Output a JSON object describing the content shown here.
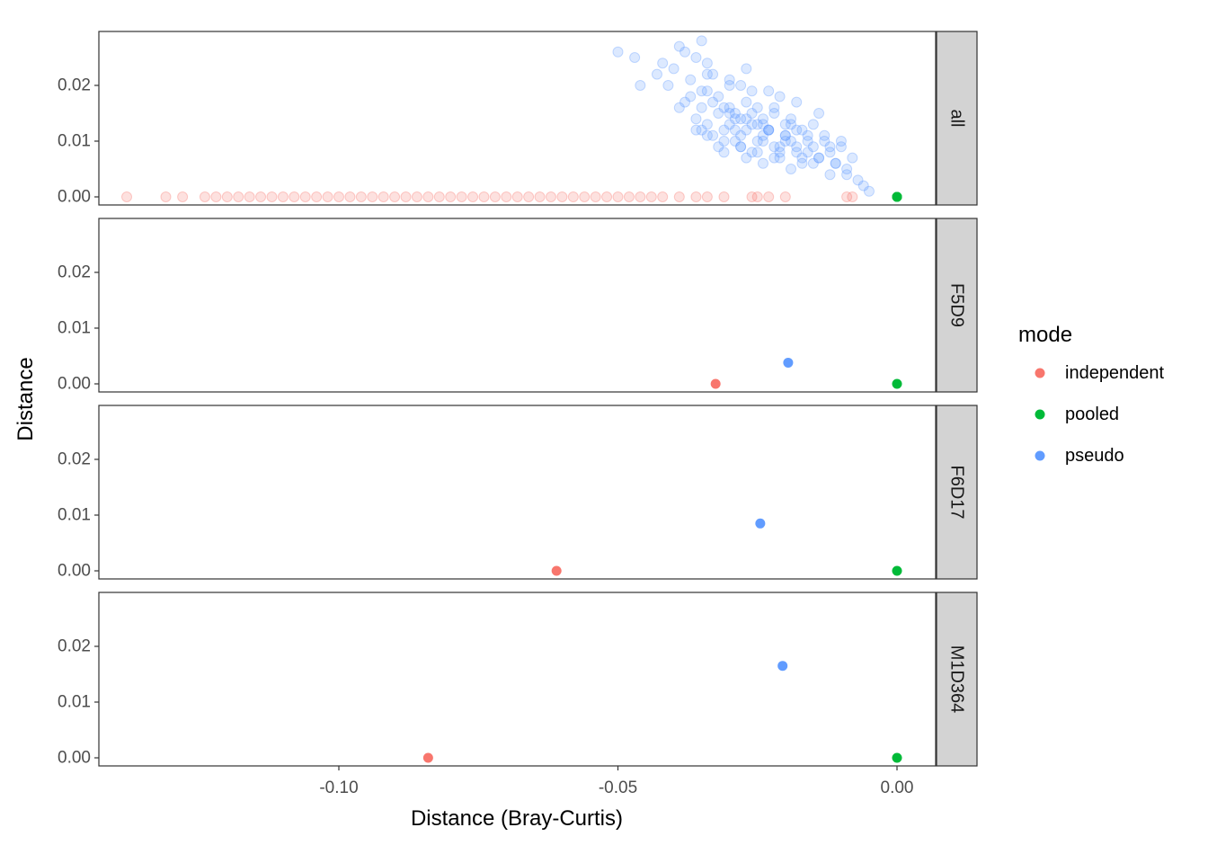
{
  "chart_data": {
    "type": "scatter",
    "title": "",
    "xlabel": "Distance (Bray-Curtis)",
    "ylabel": "Distance",
    "xlim": [
      -0.145,
      0.0145
    ],
    "ylim": [
      -0.0013,
      0.0295
    ],
    "x_ticks": [
      -0.1,
      -0.05,
      0.0
    ],
    "x_tick_labels": [
      "-0.10",
      "-0.05",
      "0.00"
    ],
    "y_ticks": [
      0.0,
      0.01,
      0.02
    ],
    "y_tick_labels": [
      "0.00",
      "0.01",
      "0.02"
    ],
    "facet_labels": [
      "all",
      "F5D9",
      "F6D17",
      "M1D364"
    ],
    "grid": false,
    "legend": {
      "title": "mode",
      "placement": "right",
      "entries": [
        {
          "label": "independent",
          "color": "#F8766D"
        },
        {
          "label": "pooled",
          "color": "#00BA38"
        },
        {
          "label": "pseudo",
          "color": "#619CFF"
        }
      ]
    },
    "series": [
      {
        "name": "independent",
        "color": "#F8766D",
        "facets": {
          "all": {
            "x": [
              -0.138,
              -0.131,
              -0.128,
              -0.124,
              -0.122,
              -0.12,
              -0.118,
              -0.116,
              -0.114,
              -0.112,
              -0.11,
              -0.108,
              -0.106,
              -0.104,
              -0.102,
              -0.1,
              -0.098,
              -0.096,
              -0.094,
              -0.092,
              -0.09,
              -0.088,
              -0.086,
              -0.084,
              -0.082,
              -0.08,
              -0.078,
              -0.076,
              -0.074,
              -0.072,
              -0.07,
              -0.068,
              -0.066,
              -0.064,
              -0.062,
              -0.06,
              -0.058,
              -0.056,
              -0.054,
              -0.052,
              -0.05,
              -0.048,
              -0.046,
              -0.044,
              -0.042,
              -0.039,
              -0.036,
              -0.034,
              -0.031,
              -0.026,
              -0.025,
              -0.023,
              -0.02,
              -0.009,
              -0.008
            ],
            "y": [
              0,
              0,
              0,
              0,
              0,
              0,
              0,
              0,
              0,
              0,
              0,
              0,
              0,
              0,
              0,
              0,
              0,
              0,
              0,
              0,
              0,
              0,
              0,
              0,
              0,
              0,
              0,
              0,
              0,
              0,
              0,
              0,
              0,
              0,
              0,
              0,
              0,
              0,
              0,
              0,
              0,
              0,
              0,
              0,
              0,
              0,
              0,
              0,
              0,
              0,
              0,
              0,
              0,
              0,
              0
            ]
          },
          "F5D9": {
            "x": [
              -0.0325
            ],
            "y": [
              0.0
            ]
          },
          "F6D17": {
            "x": [
              -0.061
            ],
            "y": [
              0.0
            ]
          },
          "M1D364": {
            "x": [
              -0.084
            ],
            "y": [
              0.0
            ]
          }
        }
      },
      {
        "name": "pooled",
        "color": "#00BA38",
        "facets": {
          "all": {
            "x": [
              0.0,
              0.0,
              0.0
            ],
            "y": [
              0.0,
              0.0,
              0.0
            ]
          },
          "F5D9": {
            "x": [
              0.0
            ],
            "y": [
              0.0
            ]
          },
          "F6D17": {
            "x": [
              0.0
            ],
            "y": [
              0.0
            ]
          },
          "M1D364": {
            "x": [
              0.0
            ],
            "y": [
              0.0
            ]
          }
        }
      },
      {
        "name": "pseudo",
        "color": "#619CFF",
        "facets": {
          "all": {
            "x": [
              -0.05,
              -0.047,
              -0.046,
              -0.043,
              -0.042,
              -0.04,
              -0.039,
              -0.038,
              -0.037,
              -0.036,
              -0.035,
              -0.034,
              -0.034,
              -0.033,
              -0.032,
              -0.031,
              -0.03,
              -0.029,
              -0.028,
              -0.027,
              -0.026,
              -0.025,
              -0.024,
              -0.023,
              -0.022,
              -0.021,
              -0.02,
              -0.019,
              -0.018,
              -0.017,
              -0.016,
              -0.015,
              -0.014,
              -0.013,
              -0.012,
              -0.011,
              -0.01,
              -0.009,
              -0.008,
              -0.006,
              -0.005,
              -0.036,
              -0.034,
              -0.031,
              -0.029,
              -0.028,
              -0.026,
              -0.025,
              -0.023,
              -0.022,
              -0.02,
              -0.018,
              -0.035,
              -0.032,
              -0.03,
              -0.027,
              -0.024,
              -0.021,
              -0.019,
              -0.016,
              -0.014,
              -0.033,
              -0.031,
              -0.028,
              -0.026,
              -0.024,
              -0.022,
              -0.02,
              -0.017,
              -0.015,
              -0.03,
              -0.029,
              -0.027,
              -0.025,
              -0.023,
              -0.021,
              -0.019,
              -0.037,
              -0.035,
              -0.033,
              -0.03,
              -0.028,
              -0.026,
              -0.024,
              -0.022,
              -0.018,
              -0.016,
              -0.012,
              -0.01,
              -0.039,
              -0.036,
              -0.034,
              -0.032,
              -0.029,
              -0.027,
              -0.025,
              -0.02,
              -0.017,
              -0.013,
              -0.011,
              -0.009,
              -0.007,
              -0.041,
              -0.038,
              -0.035,
              -0.031,
              -0.028,
              -0.024,
              -0.021,
              -0.019,
              -0.015,
              -0.012,
              -0.034,
              -0.03,
              -0.027,
              -0.023,
              -0.018,
              -0.014
            ],
            "y": [
              0.026,
              0.025,
              0.02,
              0.022,
              0.024,
              0.023,
              0.027,
              0.026,
              0.021,
              0.025,
              0.028,
              0.024,
              0.019,
              0.022,
              0.018,
              0.016,
              0.02,
              0.015,
              0.014,
              0.017,
              0.019,
              0.016,
              0.013,
              0.012,
              0.015,
              0.018,
              0.011,
              0.014,
              0.009,
              0.012,
              0.01,
              0.013,
              0.007,
              0.011,
              0.008,
              0.006,
              0.009,
              0.005,
              0.007,
              0.002,
              0.001,
              0.014,
              0.013,
              0.012,
              0.014,
              0.011,
              0.013,
              0.01,
              0.012,
              0.009,
              0.011,
              0.008,
              0.016,
              0.015,
              0.013,
              0.012,
              0.01,
              0.009,
              0.01,
              0.008,
              0.007,
              0.011,
              0.01,
              0.009,
              0.008,
              0.011,
              0.007,
              0.01,
              0.006,
              0.009,
              0.015,
              0.012,
              0.014,
              0.013,
              0.012,
              0.008,
              0.013,
              0.018,
              0.019,
              0.017,
              0.016,
              0.02,
              0.015,
              0.014,
              0.016,
              0.012,
              0.011,
              0.009,
              0.01,
              0.016,
              0.012,
              0.011,
              0.009,
              0.01,
              0.007,
              0.008,
              0.013,
              0.007,
              0.01,
              0.006,
              0.004,
              0.003,
              0.02,
              0.017,
              0.012,
              0.008,
              0.009,
              0.006,
              0.007,
              0.005,
              0.006,
              0.004,
              0.022,
              0.021,
              0.023,
              0.019,
              0.017,
              0.015
            ]
          },
          "F5D9": {
            "x": [
              -0.0195
            ],
            "y": [
              0.0038
            ]
          },
          "F6D17": {
            "x": [
              -0.0245
            ],
            "y": [
              0.0085
            ]
          },
          "M1D364": {
            "x": [
              -0.0205
            ],
            "y": [
              0.0165
            ]
          }
        }
      }
    ]
  }
}
